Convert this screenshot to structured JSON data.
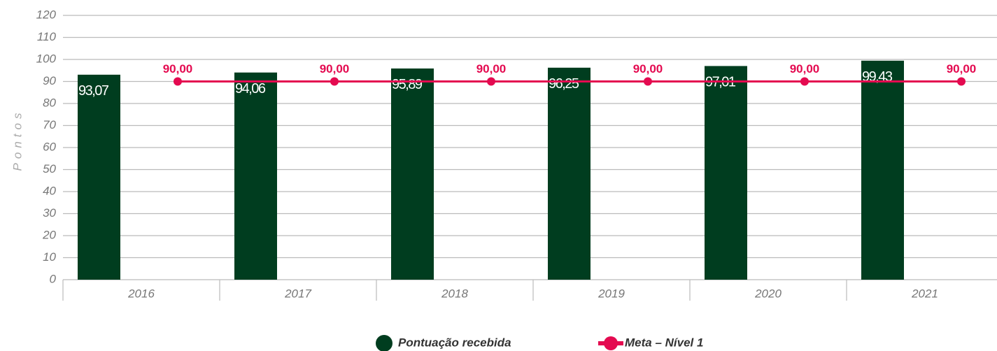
{
  "chart_data": {
    "type": "combo",
    "y_label": "Pontos",
    "categories": [
      "2016",
      "2017",
      "2018",
      "2019",
      "2020",
      "2021"
    ],
    "series": [
      {
        "name": "Pontuação recebida",
        "type": "bar",
        "color": "#003d1f",
        "values": [
          93.07,
          94.06,
          95.89,
          96.25,
          97.01,
          99.43
        ],
        "value_labels": [
          "93,07",
          "94,06",
          "95,89",
          "96,25",
          "97,01",
          "99,43"
        ]
      },
      {
        "name": "Meta – Nível 1",
        "type": "line",
        "color": "#e40a50",
        "values": [
          90,
          90,
          90,
          90,
          90,
          90
        ],
        "value_labels": [
          "90,00",
          "90,00",
          "90,00",
          "90,00",
          "90,00",
          "90,00"
        ]
      }
    ],
    "ylim": [
      0,
      120
    ],
    "yticks": [
      0,
      10,
      20,
      30,
      40,
      50,
      60,
      70,
      80,
      90,
      100,
      110,
      120
    ],
    "grid": true
  }
}
